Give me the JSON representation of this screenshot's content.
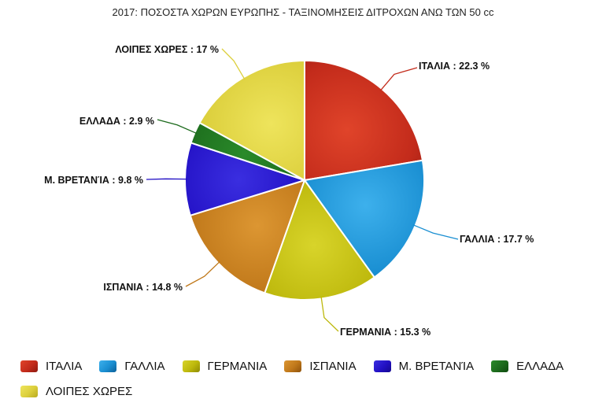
{
  "chart_data": {
    "type": "pie",
    "title": "2017: ΠΟΣΟΣΤΑ ΧΩΡΩΝ ΕΥΡΩΠΗΣ - ΤΑΞΙΝΟΜΗΣΕΙΣ ΔΙΤΡΟΧΩΝ ΑΝΩ ΤΩΝ 50 cc",
    "unit": "%",
    "legend_position": "bottom",
    "slices": [
      {
        "label": "ΙΤΑΛΙΑ",
        "value": 22.3,
        "value_text": "22.3",
        "color": "#c32b1b",
        "color_light": "#e0442a",
        "color_dark": "#8e1a10"
      },
      {
        "label": "ΓΑΛΛΙΑ",
        "value": 17.7,
        "value_text": "17.7",
        "color": "#1a8fd2",
        "color_light": "#3db0ec",
        "color_dark": "#0c5f98"
      },
      {
        "label": "ΓΕΡΜΑΝΙΑ",
        "value": 15.3,
        "value_text": "15.3",
        "color": "#bdb80c",
        "color_light": "#d8d42a",
        "color_dark": "#8d8a04"
      },
      {
        "label": "ΙΣΠΑΝΙΑ",
        "value": 14.8,
        "value_text": "14.8",
        "color": "#c0781a",
        "color_light": "#dc9632",
        "color_dark": "#8e520c"
      },
      {
        "label": "Μ. ΒΡΕΤΑΝΊΑ",
        "value": 9.8,
        "value_text": "9.8",
        "color": "#2210c4",
        "color_light": "#3a2ee0",
        "color_dark": "#14088e"
      },
      {
        "label": "ΕΛΛΑΔΑ",
        "value": 2.9,
        "value_text": "2.9",
        "color": "#1c6a1c",
        "color_light": "#2a8a2a",
        "color_dark": "#0f4a0f"
      },
      {
        "label": "ΛΟΙΠΕΣ ΧΩΡΕΣ",
        "value": 17,
        "value_text": "17",
        "color": "#dccf3c",
        "color_light": "#eee45c",
        "color_dark": "#b8aa20"
      }
    ]
  }
}
